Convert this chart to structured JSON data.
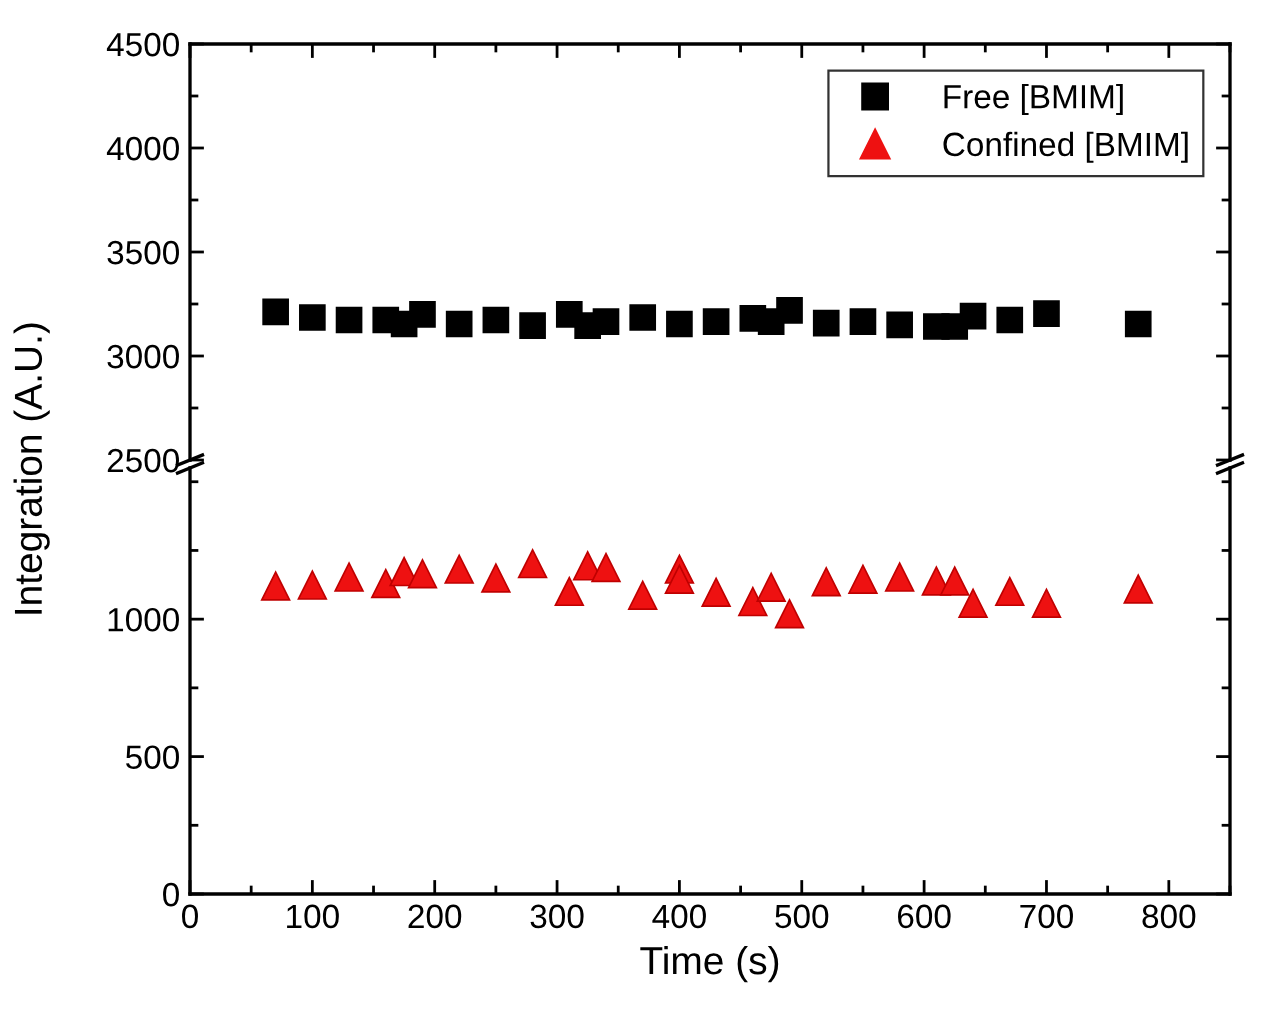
{
  "chart_data": [
    {
      "type": "scatter",
      "ylabel": "Integration (A.U.)",
      "xlim": [
        0,
        850
      ],
      "xticks": [
        0,
        100,
        200,
        300,
        400,
        500,
        600,
        700,
        800
      ],
      "ylim": [
        2500,
        4500
      ],
      "yticks": [
        2500,
        3000,
        3500,
        4000,
        4500
      ],
      "tick_labels": "y",
      "legend": "top right",
      "grid": false,
      "x": [
        70,
        100,
        130,
        160,
        175,
        190,
        220,
        250,
        280,
        310,
        325,
        340,
        370,
        400,
        430,
        460,
        475,
        490,
        520,
        550,
        580,
        610,
        625,
        640,
        670,
        700,
        775
      ],
      "series": [
        {
          "name": "Free [BMIM]",
          "color": "#000000",
          "marker": "square",
          "values": [
            3212,
            3185,
            3173,
            3173,
            3154,
            3200,
            3154,
            3173,
            3146,
            3200,
            3146,
            3165,
            3185,
            3154,
            3165,
            3181,
            3165,
            3219,
            3158,
            3165,
            3150,
            3142,
            3142,
            3192,
            3173,
            3204,
            3154
          ]
        }
      ]
    },
    {
      "type": "scatter",
      "xlabel": "Time (s)",
      "xlim": [
        0,
        850
      ],
      "xticks": [
        0,
        100,
        200,
        300,
        400,
        500,
        600,
        700,
        800
      ],
      "ylim": [
        0,
        1550
      ],
      "yticks": [
        0,
        500,
        1000
      ],
      "grid": false,
      "x": [
        70,
        100,
        130,
        160,
        175,
        190,
        220,
        250,
        280,
        310,
        325,
        340,
        370,
        400,
        400,
        430,
        460,
        475,
        490,
        520,
        550,
        580,
        610,
        625,
        640,
        670,
        700,
        775
      ],
      "series": [
        {
          "name": "Confined [BMIM]",
          "color": "#ee1111",
          "marker": "triangle",
          "values": [
            1121,
            1124,
            1153,
            1130,
            1173,
            1165,
            1182,
            1150,
            1202,
            1101,
            1194,
            1188,
            1087,
            1182,
            1145,
            1098,
            1064,
            1116,
            1020,
            1136,
            1145,
            1153,
            1139,
            1139,
            1058,
            1101,
            1058,
            1110
          ]
        }
      ]
    }
  ]
}
